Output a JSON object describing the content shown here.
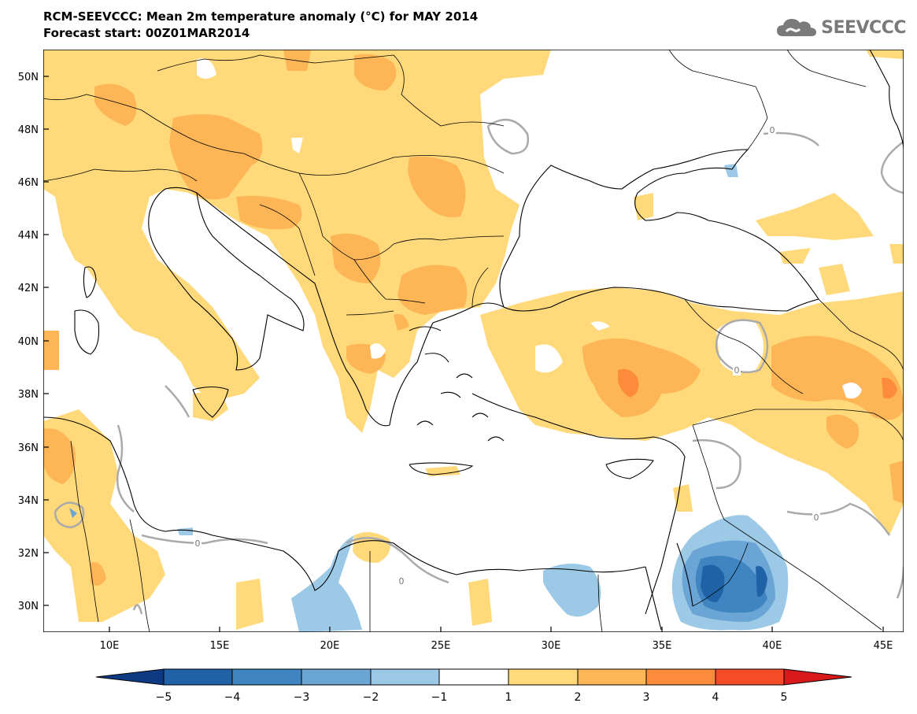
{
  "header": {
    "title_line1": "RCM-SEEVCCC: Mean 2m temperature anomaly (°C) for MAY 2014",
    "title_line2": "Forecast start: 00Z01MAR2014"
  },
  "logo": {
    "icon": "cloud-icon",
    "text": "SEEVCCC"
  },
  "map": {
    "lat_labels": [
      "50N",
      "48N",
      "46N",
      "44N",
      "42N",
      "40N",
      "38N",
      "36N",
      "34N",
      "32N",
      "30N"
    ],
    "lon_labels": [
      "10E",
      "15E",
      "20E",
      "25E",
      "30E",
      "35E",
      "40E",
      "45E"
    ],
    "contour_label": "0"
  },
  "colorbar": {
    "labels": [
      "−5",
      "−4",
      "−3",
      "−2",
      "−1",
      "1",
      "2",
      "3",
      "4",
      "5"
    ],
    "colors": {
      "lt_-5": "#0d3a82",
      "-5_-4": "#1f62a6",
      "-4_-3": "#3f85c2",
      "-3_-2": "#6aa5d6",
      "-2_-1": "#9ccae6",
      "-1_1": "#ffffff",
      "1_2": "#ffd97a",
      "2_3": "#fdb556",
      "3_4": "#fc8c3c",
      "4_5": "#f64b29",
      "gt_5": "#d7191c"
    }
  }
}
